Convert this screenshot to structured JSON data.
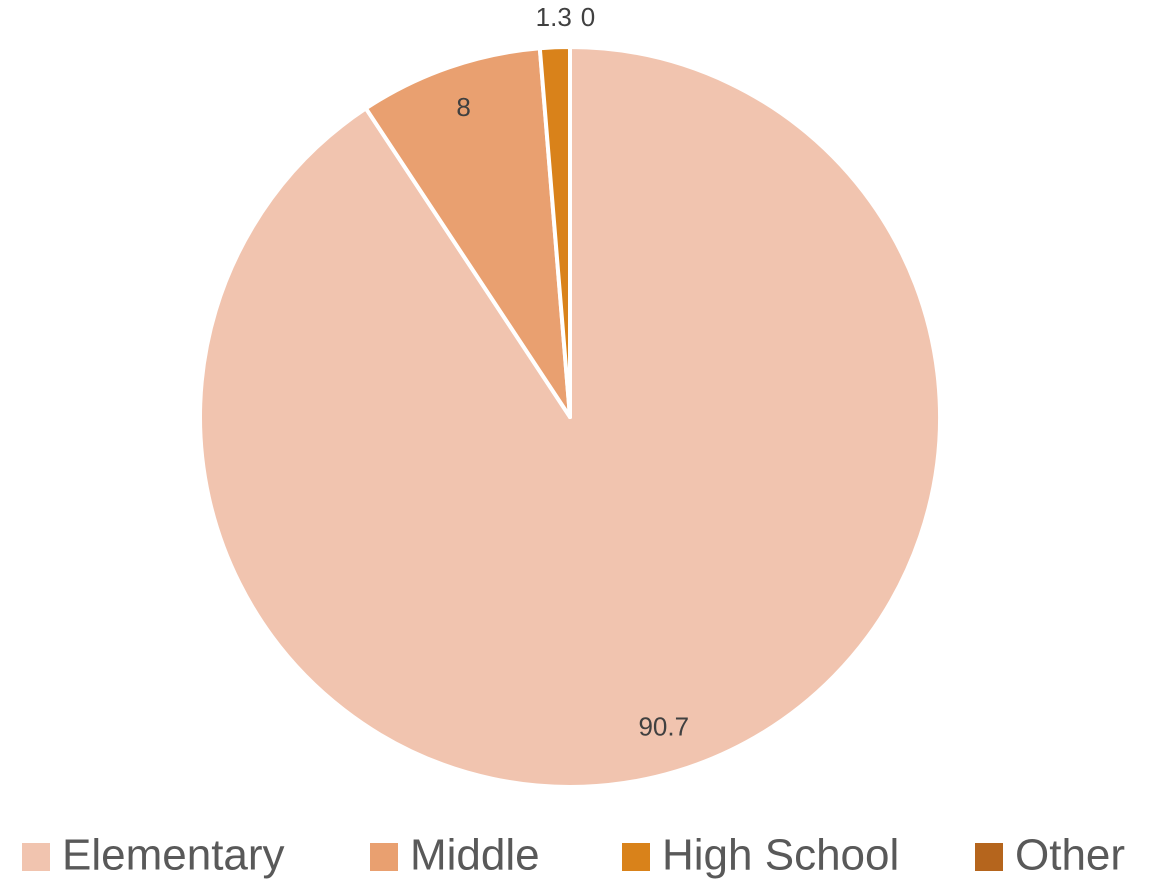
{
  "chart_data": {
    "type": "pie",
    "categories": [
      "Elementary",
      "Middle",
      "High School",
      "Other"
    ],
    "values": [
      90.7,
      8,
      1.3,
      0
    ],
    "colors": [
      "#F1C4AF",
      "#E9A070",
      "#D9821A",
      "#B5651D"
    ],
    "legend": "bottom"
  }
}
